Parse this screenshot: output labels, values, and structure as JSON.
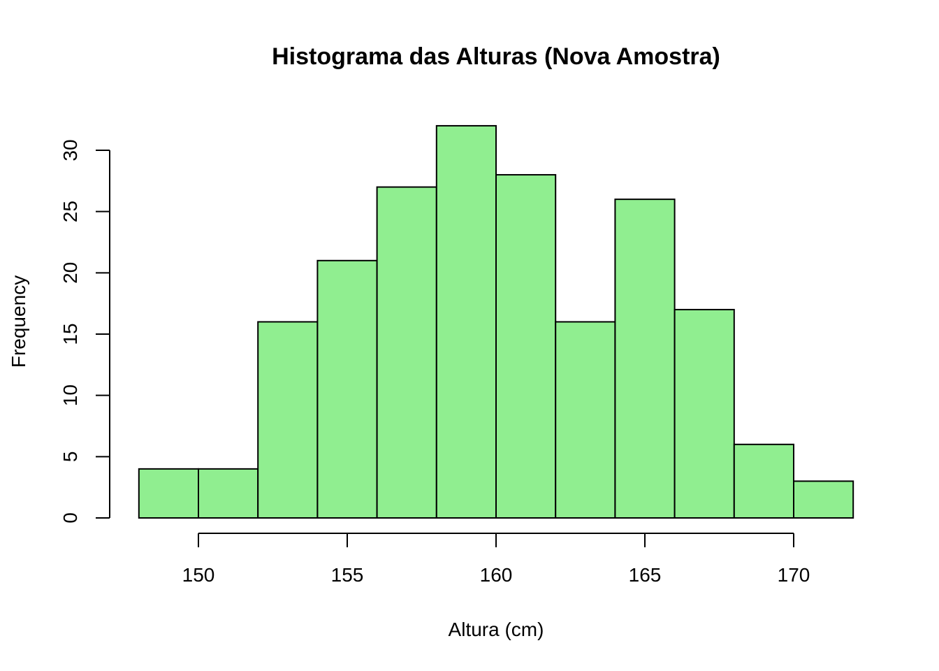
{
  "chart_data": {
    "type": "bar",
    "title": "Histograma das Alturas (Nova Amostra)",
    "xlabel": "Altura (cm)",
    "ylabel": "Frequency",
    "bins": [
      {
        "start": 148,
        "end": 150,
        "count": 4
      },
      {
        "start": 150,
        "end": 152,
        "count": 4
      },
      {
        "start": 152,
        "end": 154,
        "count": 16
      },
      {
        "start": 154,
        "end": 156,
        "count": 21
      },
      {
        "start": 156,
        "end": 158,
        "count": 27
      },
      {
        "start": 158,
        "end": 160,
        "count": 32
      },
      {
        "start": 160,
        "end": 162,
        "count": 28
      },
      {
        "start": 162,
        "end": 164,
        "count": 16
      },
      {
        "start": 164,
        "end": 166,
        "count": 26
      },
      {
        "start": 166,
        "end": 168,
        "count": 17
      },
      {
        "start": 168,
        "end": 170,
        "count": 6
      },
      {
        "start": 170,
        "end": 172,
        "count": 3
      }
    ],
    "x_ticks": [
      150,
      155,
      160,
      165,
      170
    ],
    "y_ticks": [
      0,
      5,
      10,
      15,
      20,
      25,
      30
    ],
    "xlim": [
      148,
      172
    ],
    "ylim": [
      0,
      32
    ],
    "bar_color": "#90EE90",
    "grid": false
  }
}
